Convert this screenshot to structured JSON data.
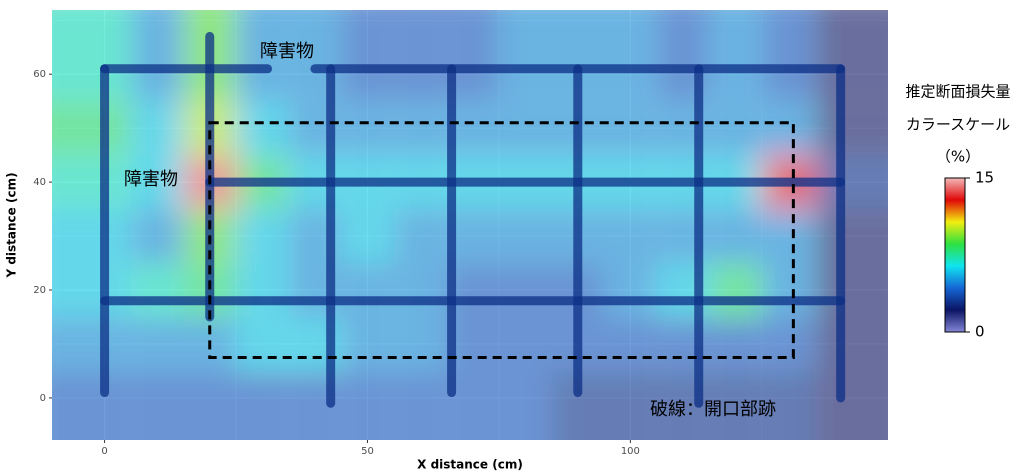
{
  "chart_data": {
    "type": "heatmap",
    "x_label": "X distance (cm)",
    "y_label": "Y distance (cm)",
    "x": [
      0,
      10,
      20,
      30,
      40,
      50,
      60,
      70,
      80,
      90,
      100,
      110,
      120,
      130,
      140
    ],
    "y": [
      0,
      10,
      20,
      30,
      40,
      50,
      60
    ],
    "z": [
      [
        4,
        4,
        4,
        4,
        4,
        4,
        4,
        4,
        4,
        3,
        3,
        3,
        3,
        3,
        2
      ],
      [
        5,
        5,
        5,
        6,
        6,
        5,
        5,
        4,
        4,
        4,
        4,
        4,
        4,
        4,
        2
      ],
      [
        6,
        7,
        8,
        6,
        5,
        5,
        5,
        4,
        4,
        4,
        5,
        6,
        8,
        5,
        2
      ],
      [
        6,
        5,
        9,
        6,
        5,
        6,
        5,
        5,
        5,
        5,
        5,
        5,
        5,
        5,
        2
      ],
      [
        7,
        6,
        14,
        8,
        6,
        6,
        6,
        6,
        6,
        6,
        6,
        6,
        6,
        13,
        3
      ],
      [
        8,
        6,
        10,
        6,
        5,
        5,
        5,
        5,
        5,
        5,
        5,
        5,
        5,
        5,
        2
      ],
      [
        7,
        5,
        9,
        5,
        5,
        4,
        4,
        4,
        5,
        5,
        5,
        4,
        5,
        4,
        2
      ]
    ],
    "zlim": [
      0,
      15
    ],
    "zticks": [
      0,
      15
    ],
    "colors": [
      "#8486d6",
      "#0b1464",
      "#1566d4",
      "#10e4f0",
      "#2ee040",
      "#f2ee10",
      "#e00808",
      "#f3b8b8"
    ],
    "xlim": [
      -10,
      149
    ],
    "ylim": [
      -7.8,
      71.9
    ],
    "xticks": [
      0,
      50,
      100
    ],
    "yticks": [
      0,
      20,
      40,
      60
    ],
    "grid": true,
    "rebars": [
      {
        "x": [
          0,
          0
        ],
        "y": [
          1,
          61
        ]
      },
      {
        "x": [
          20,
          20
        ],
        "y": [
          15,
          67
        ]
      },
      {
        "x": [
          43,
          43
        ],
        "y": [
          -1,
          61
        ]
      },
      {
        "x": [
          66,
          66
        ],
        "y": [
          1,
          61
        ]
      },
      {
        "x": [
          90,
          90
        ],
        "y": [
          1,
          61
        ]
      },
      {
        "x": [
          113,
          113
        ],
        "y": [
          -1,
          61
        ]
      },
      {
        "x": [
          140,
          140
        ],
        "y": [
          0,
          61
        ]
      },
      {
        "x": [
          0,
          31
        ],
        "y": [
          61,
          61
        ]
      },
      {
        "x": [
          40,
          140
        ],
        "y": [
          61,
          61
        ]
      },
      {
        "x": [
          20,
          140
        ],
        "y": [
          40,
          40
        ]
      },
      {
        "x": [
          0,
          140
        ],
        "y": [
          18,
          18
        ]
      }
    ],
    "dashed_region": {
      "x": [
        20,
        131
      ],
      "y": [
        7.5,
        51
      ]
    },
    "annotations": [
      "障害物",
      "障害物",
      "破線：開口部跡"
    ],
    "colorbar_title": [
      "推定断面損失量",
      "カラースケール",
      "（%）"
    ]
  }
}
